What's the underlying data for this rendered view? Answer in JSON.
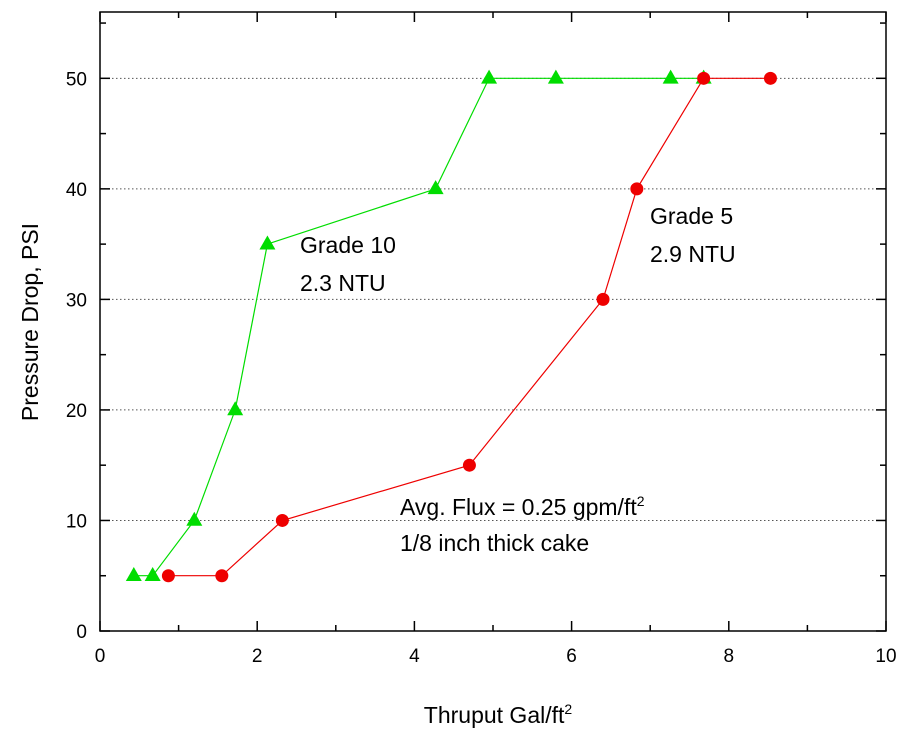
{
  "chart_data": {
    "type": "line",
    "xlabel": "Thruput Gal/ft",
    "xlabel_sup": "2",
    "ylabel": "Pressure Drop, PSI",
    "xlim": [
      0,
      10
    ],
    "ylim": [
      0,
      56
    ],
    "xticks": [
      0,
      2,
      4,
      6,
      8,
      10
    ],
    "yticks": [
      0,
      10,
      20,
      30,
      40,
      50
    ],
    "grid": "horizontal dotted",
    "series": [
      {
        "marker": "triangle",
        "color": "#00dd00",
        "x": [
          0.43,
          0.67,
          1.2,
          1.72,
          2.13,
          4.27,
          4.95,
          5.8,
          7.26,
          7.68
        ],
        "y": [
          5,
          5,
          10,
          20,
          35,
          40,
          50,
          50,
          50,
          50
        ]
      },
      {
        "marker": "circle",
        "color": "#ee0000",
        "x": [
          0.87,
          1.55,
          2.32,
          4.7,
          6.4,
          6.83,
          7.68,
          8.53
        ],
        "y": [
          5,
          5,
          10,
          15,
          30,
          40,
          50,
          50
        ]
      }
    ],
    "annotations": {
      "grade10_line1": "Grade 10",
      "grade10_line2": "2.3 NTU",
      "grade5_line1": "Grade 5",
      "grade5_line2": "2.9 NTU",
      "flux_line1": "Avg. Flux = 0.25 gpm/ft",
      "flux_line1_sup": "2",
      "flux_line2": "1/8 inch thick cake"
    }
  }
}
